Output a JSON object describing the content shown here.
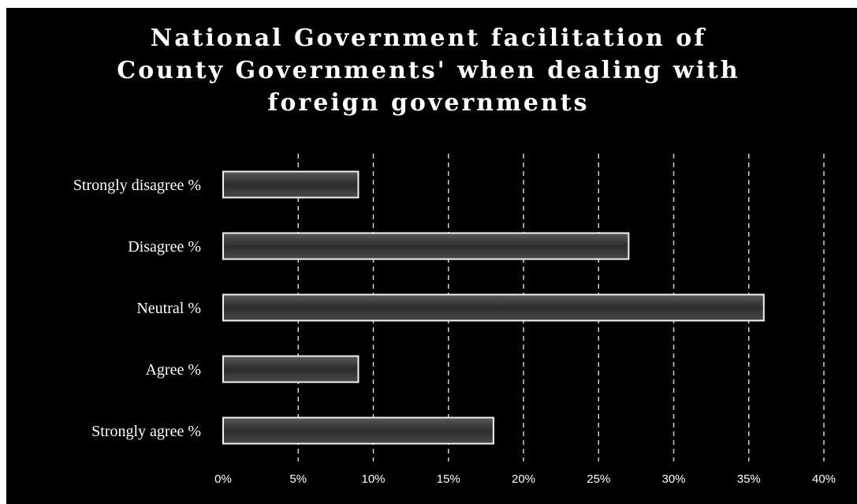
{
  "chart_data": {
    "type": "bar",
    "orientation": "horizontal",
    "title_lines": [
      "National Government facilitation of",
      "County Governments' when dealing with",
      "foreign governments"
    ],
    "categories": [
      "Strongly disagree %",
      "Disagree %",
      "Neutral %",
      "Agree %",
      "Strongly agree %"
    ],
    "values": [
      9,
      27,
      36,
      9,
      18
    ],
    "xlim": [
      0,
      40
    ],
    "x_ticks": [
      "0%",
      "5%",
      "10%",
      "15%",
      "20%",
      "25%",
      "30%",
      "35%",
      "40%"
    ],
    "grid": true,
    "legend": "none",
    "colors": {
      "background": "#000000",
      "bar_fill": "#3a3a3a",
      "bar_edge": "#f2f2f2",
      "grid": "#cfcfcf",
      "text": "#ffffff"
    }
  }
}
